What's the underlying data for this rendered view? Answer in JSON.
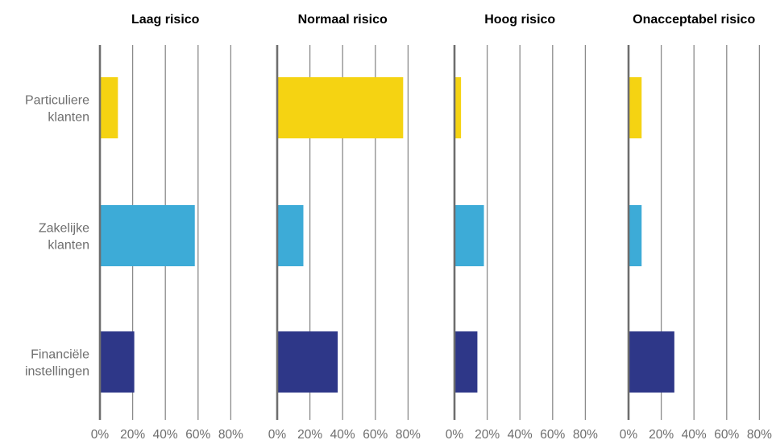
{
  "chart_data": {
    "type": "bar",
    "orientation": "horizontal",
    "panels": [
      "Laag risico",
      "Normaal risico",
      "Hoog risico",
      "Onacceptabel risico"
    ],
    "categories": [
      [
        "Particuliere",
        "klanten"
      ],
      [
        "Zakelijke",
        "klanten"
      ],
      [
        "Financiële",
        "instellingen"
      ]
    ],
    "ticks": [
      {
        "value": 0,
        "label": "0%"
      },
      {
        "value": 20,
        "label": "20%"
      },
      {
        "value": 40,
        "label": "40%"
      },
      {
        "value": 60,
        "label": "60%"
      },
      {
        "value": 80,
        "label": "80%"
      }
    ],
    "xlim": [
      0,
      80
    ],
    "grid": true,
    "colors": [
      "#f5d312",
      "#3dabd7",
      "#2e3788"
    ],
    "values": [
      [
        11,
        58,
        21
      ],
      [
        77,
        16,
        37
      ],
      [
        4,
        18,
        14
      ],
      [
        8,
        8,
        28
      ]
    ]
  }
}
